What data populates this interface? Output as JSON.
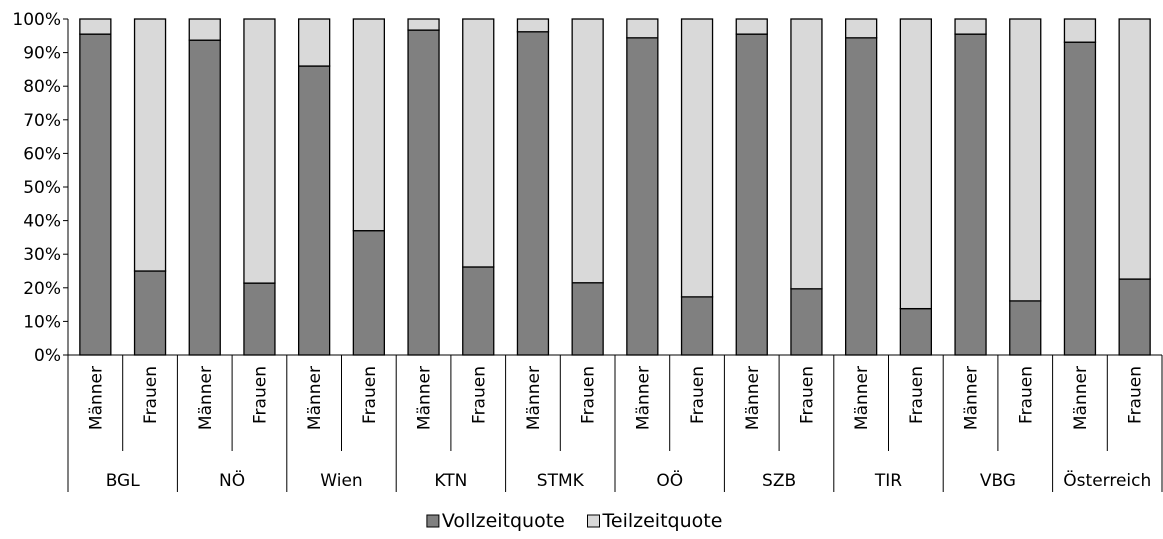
{
  "chart_data": {
    "type": "bar",
    "stacked": true,
    "normalized_percent": true,
    "groups": [
      "BGL",
      "NÖ",
      "Wien",
      "KTN",
      "STMK",
      "OÖ",
      "SZB",
      "TIR",
      "VBG",
      "Österreich"
    ],
    "subcategories": [
      "Männer",
      "Frauen"
    ],
    "categories": [
      "BGL Männer",
      "BGL Frauen",
      "NÖ Männer",
      "NÖ Frauen",
      "Wien Männer",
      "Wien Frauen",
      "KTN Männer",
      "KTN Frauen",
      "STMK Männer",
      "STMK Frauen",
      "OÖ Männer",
      "OÖ Frauen",
      "SZB Männer",
      "SZB Frauen",
      "TIR Männer",
      "TIR Frauen",
      "VBG Männer",
      "VBG Frauen",
      "Österreich Männer",
      "Österreich Frauen"
    ],
    "series": [
      {
        "name": "Vollzeitquote",
        "color": "#808080",
        "values": [
          95.5,
          25.0,
          93.7,
          21.4,
          86.0,
          37.0,
          96.7,
          26.2,
          96.2,
          21.5,
          94.4,
          17.3,
          95.5,
          19.7,
          94.4,
          13.8,
          95.5,
          16.1,
          93.1,
          22.6
        ]
      },
      {
        "name": "Teilzeitquote",
        "color": "#d9d9d9",
        "values": [
          4.5,
          75.0,
          6.3,
          78.6,
          14.0,
          63.0,
          3.3,
          73.8,
          3.8,
          78.5,
          5.6,
          82.7,
          4.5,
          80.3,
          5.6,
          86.2,
          4.5,
          83.9,
          6.9,
          77.4
        ]
      }
    ],
    "y_ticks": [
      "0%",
      "10%",
      "20%",
      "30%",
      "40%",
      "50%",
      "60%",
      "70%",
      "80%",
      "90%",
      "100%"
    ],
    "ylim": [
      0,
      100
    ],
    "title": "",
    "xlabel": "",
    "ylabel": "",
    "grid": false,
    "legend_position": "bottom"
  }
}
